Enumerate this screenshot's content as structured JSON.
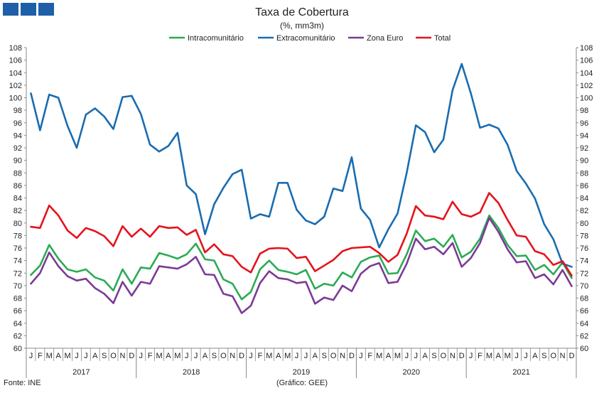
{
  "header": {
    "title": "Taxa de Cobertura",
    "subtitle": "(%, mm3m)"
  },
  "footer": {
    "source": "Fonte: INE",
    "credit": "(Gráfico: GEE)"
  },
  "colors": {
    "logo": "#1f5fa8",
    "axis": "#888888",
    "text": "#222222"
  },
  "chart_data": {
    "type": "line",
    "title": "Taxa de Cobertura",
    "subtitle": "(%, mm3m)",
    "ylim": [
      60,
      108
    ],
    "ytick_step": 2,
    "grid": false,
    "legend_position": "top-center",
    "month_labels": [
      "J",
      "F",
      "M",
      "A",
      "M",
      "J",
      "J",
      "A",
      "S",
      "O",
      "N",
      "D"
    ],
    "years": [
      "2017",
      "2018",
      "2019",
      "2020",
      "2021"
    ],
    "series": [
      {
        "name": "Intracomunitário",
        "color": "#2bab55",
        "values": [
          71.7,
          73.2,
          76.5,
          74.3,
          72.6,
          72.2,
          72.6,
          71.3,
          70.8,
          69.2,
          72.6,
          70.3,
          72.9,
          72.7,
          75.2,
          74.8,
          74.3,
          75.0,
          76.7,
          74.2,
          74.0,
          71.0,
          70.3,
          67.8,
          69.0,
          72.6,
          74.0,
          72.5,
          72.2,
          71.8,
          72.5,
          69.5,
          70.3,
          70.0,
          72.1,
          71.3,
          73.8,
          74.5,
          74.8,
          71.9,
          72.0,
          75.0,
          78.8,
          77.1,
          77.5,
          76.2,
          78.1,
          74.5,
          75.4,
          77.5,
          81.2,
          79.2,
          76.5,
          74.7,
          74.8,
          72.5,
          73.3,
          71.8,
          73.7,
          71.2
        ]
      },
      {
        "name": "Extracomunitário",
        "color": "#1a6cb0",
        "values": [
          100.7,
          94.8,
          100.5,
          100.0,
          95.5,
          92.0,
          97.3,
          98.3,
          97.0,
          95.0,
          100.1,
          100.3,
          97.4,
          92.5,
          91.4,
          92.3,
          94.4,
          86.0,
          84.6,
          78.2,
          83.0,
          85.6,
          87.8,
          88.5,
          80.7,
          81.4,
          81.0,
          86.4,
          86.4,
          82.1,
          80.4,
          79.8,
          81.0,
          85.5,
          85.1,
          90.5,
          82.3,
          80.5,
          76.1,
          79.0,
          81.5,
          88.0,
          95.6,
          94.5,
          91.3,
          93.3,
          101.2,
          105.4,
          100.7,
          95.2,
          95.7,
          95.1,
          92.5,
          88.3,
          86.3,
          83.9,
          79.8,
          77.4,
          73.5,
          73.0
        ]
      },
      {
        "name": "Zona Euro",
        "color": "#7b3b96",
        "values": [
          70.3,
          72.0,
          75.3,
          73.1,
          71.5,
          70.8,
          71.1,
          69.6,
          68.7,
          67.2,
          70.6,
          68.4,
          70.6,
          70.3,
          73.1,
          72.9,
          72.7,
          73.4,
          74.6,
          71.8,
          71.7,
          68.7,
          68.3,
          65.6,
          66.8,
          70.4,
          72.3,
          71.2,
          71.0,
          70.4,
          70.6,
          67.1,
          68.1,
          67.7,
          70.0,
          69.1,
          71.9,
          73.1,
          73.6,
          70.4,
          70.6,
          73.5,
          77.5,
          75.8,
          76.2,
          75.0,
          76.8,
          73.0,
          74.4,
          76.8,
          80.8,
          78.6,
          75.8,
          73.7,
          73.9,
          71.2,
          71.8,
          70.2,
          72.5,
          69.9
        ]
      },
      {
        "name": "Total",
        "color": "#e4131c",
        "values": [
          79.4,
          79.2,
          82.8,
          81.2,
          78.8,
          77.6,
          79.2,
          78.7,
          77.9,
          76.3,
          79.5,
          77.8,
          79.1,
          77.8,
          79.5,
          79.2,
          79.3,
          78.1,
          78.9,
          75.3,
          76.6,
          75.0,
          74.7,
          73.0,
          72.1,
          75.1,
          75.9,
          76.0,
          75.9,
          74.4,
          74.6,
          72.3,
          73.2,
          74.1,
          75.5,
          76.0,
          76.1,
          76.2,
          75.2,
          73.8,
          74.9,
          78.3,
          82.7,
          81.2,
          81.0,
          80.6,
          83.4,
          81.4,
          81.0,
          81.7,
          84.8,
          83.2,
          80.5,
          78.0,
          77.8,
          75.5,
          75.0,
          73.3,
          73.9,
          71.6
        ]
      }
    ]
  }
}
